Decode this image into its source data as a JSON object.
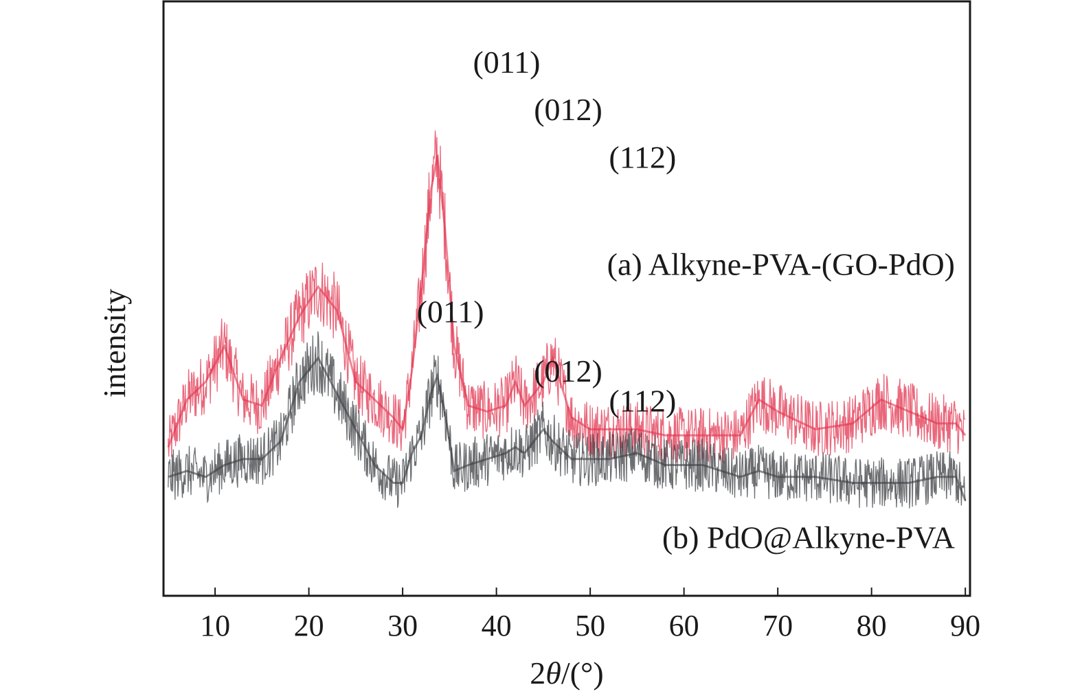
{
  "chart_data": {
    "type": "line",
    "xlabel_prefix": "2",
    "xlabel_theta": "θ",
    "xlabel_suffix": "/(°)",
    "ylabel": "intensity",
    "xlim": [
      4.5,
      90.5
    ],
    "xticks": [
      10,
      20,
      30,
      40,
      50,
      60,
      70,
      80,
      90
    ],
    "grid": false,
    "x": [
      5,
      7,
      9,
      11,
      13,
      15,
      17,
      19,
      21,
      23,
      25,
      27,
      29,
      30,
      31,
      32,
      33,
      33.7,
      34.5,
      35.5,
      37,
      39,
      41,
      42,
      43,
      45,
      46,
      48,
      50,
      52,
      55,
      58,
      62,
      66,
      68,
      70,
      74,
      78,
      81,
      84,
      87,
      89,
      90
    ],
    "series": [
      {
        "name": "(a) Alkyne-PVA-(GO-PdO)",
        "color": "#e2344f",
        "values": [
          0.25,
          0.33,
          0.36,
          0.42,
          0.33,
          0.32,
          0.4,
          0.47,
          0.52,
          0.48,
          0.36,
          0.33,
          0.3,
          0.28,
          0.38,
          0.52,
          0.68,
          0.74,
          0.62,
          0.42,
          0.32,
          0.31,
          0.32,
          0.36,
          0.32,
          0.36,
          0.4,
          0.3,
          0.28,
          0.28,
          0.28,
          0.27,
          0.27,
          0.27,
          0.33,
          0.31,
          0.28,
          0.29,
          0.33,
          0.31,
          0.29,
          0.29,
          0.27
        ]
      },
      {
        "name": "(b) PdO@Alkyne-PVA",
        "color": "#3b3d42",
        "values": [
          0.2,
          0.21,
          0.2,
          0.22,
          0.23,
          0.23,
          0.26,
          0.36,
          0.4,
          0.34,
          0.28,
          0.22,
          0.19,
          0.19,
          0.24,
          0.27,
          0.34,
          0.37,
          0.31,
          0.21,
          0.22,
          0.23,
          0.24,
          0.25,
          0.24,
          0.28,
          0.26,
          0.23,
          0.23,
          0.23,
          0.24,
          0.22,
          0.22,
          0.2,
          0.21,
          0.2,
          0.2,
          0.19,
          0.19,
          0.19,
          0.2,
          0.2,
          0.16
        ]
      }
    ],
    "annotations": [
      {
        "text": "(011)",
        "x": 37.5,
        "y": 0.88
      },
      {
        "text": "(012)",
        "x": 44.0,
        "y": 0.8
      },
      {
        "text": "(112)",
        "x": 52.0,
        "y": 0.72
      },
      {
        "text": "(011)",
        "x": 31.5,
        "y": 0.46
      },
      {
        "text": "(012)",
        "x": 44.0,
        "y": 0.36
      },
      {
        "text": "(112)",
        "x": 52.0,
        "y": 0.31
      }
    ]
  }
}
